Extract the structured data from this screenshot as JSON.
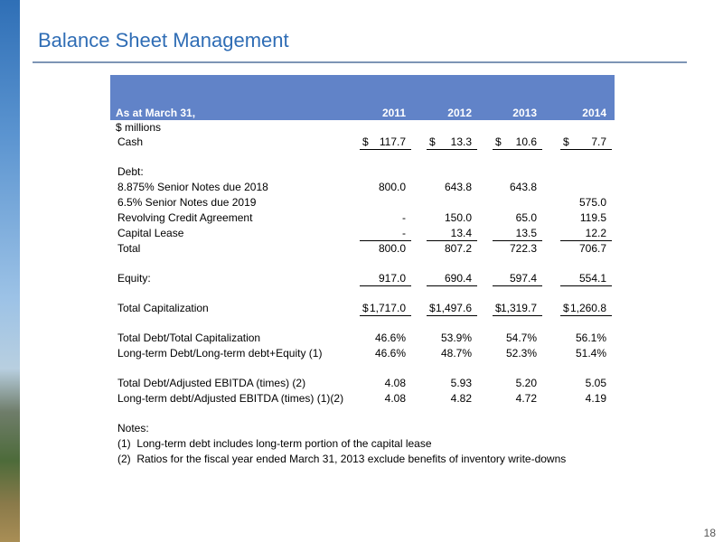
{
  "title": "Balance Sheet Management",
  "page_number": "18",
  "table": {
    "header": [
      "As at March 31,",
      "2011",
      "2012",
      "2013",
      "2014"
    ],
    "unit": "$ millions",
    "sections": [
      [
        {
          "label": "Cash",
          "cells": [
            [
              "$",
              "117.7"
            ],
            [
              "$",
              "13.3"
            ],
            [
              "$",
              "10.6"
            ],
            [
              "$",
              "7.7"
            ]
          ],
          "underline": true
        }
      ],
      [
        {
          "label": "Debt:",
          "cells": [
            null,
            null,
            null,
            null
          ]
        },
        {
          "label": "8.875% Senior Notes due 2018",
          "cells": [
            [
              null,
              "800.0"
            ],
            [
              null,
              "643.8"
            ],
            [
              null,
              "643.8"
            ],
            null
          ]
        },
        {
          "label": "6.5% Senior Notes due 2019",
          "cells": [
            null,
            null,
            null,
            [
              null,
              "575.0"
            ]
          ]
        },
        {
          "label": "Revolving Credit Agreement",
          "cells": [
            [
              null,
              "-"
            ],
            [
              null,
              "150.0"
            ],
            [
              null,
              "65.0"
            ],
            [
              null,
              "119.5"
            ]
          ]
        },
        {
          "label": "Capital Lease",
          "cells": [
            [
              null,
              "-"
            ],
            [
              null,
              "13.4"
            ],
            [
              null,
              "13.5"
            ],
            [
              null,
              "12.2"
            ]
          ],
          "underline": true
        },
        {
          "label": "Total",
          "cells": [
            [
              null,
              "800.0"
            ],
            [
              null,
              "807.2"
            ],
            [
              null,
              "722.3"
            ],
            [
              null,
              "706.7"
            ]
          ]
        }
      ],
      [
        {
          "label": "Equity:",
          "cells": [
            [
              null,
              "917.0"
            ],
            [
              null,
              "690.4"
            ],
            [
              null,
              "597.4"
            ],
            [
              null,
              "554.1"
            ]
          ],
          "underline": true
        }
      ],
      [
        {
          "label": "Total Capitalization",
          "cells": [
            [
              "$",
              "1,717.0"
            ],
            [
              "$",
              "1,497.6"
            ],
            [
              "$",
              "1,319.7"
            ],
            [
              "$",
              "1,260.8"
            ]
          ],
          "underline": true
        }
      ],
      [
        {
          "label": "Total Debt/Total Capitalization",
          "cells": [
            [
              null,
              "46.6%"
            ],
            [
              null,
              "53.9%"
            ],
            [
              null,
              "54.7%"
            ],
            [
              null,
              "56.1%"
            ]
          ]
        },
        {
          "label": "Long-term Debt/Long-term debt+Equity (1)",
          "cells": [
            [
              null,
              "46.6%"
            ],
            [
              null,
              "48.7%"
            ],
            [
              null,
              "52.3%"
            ],
            [
              null,
              "51.4%"
            ]
          ]
        }
      ],
      [
        {
          "label": "Total Debt/Adjusted EBITDA (times) (2)",
          "cells": [
            [
              null,
              "4.08"
            ],
            [
              null,
              "5.93"
            ],
            [
              null,
              "5.20"
            ],
            [
              null,
              "5.05"
            ]
          ]
        },
        {
          "label": "Long-term debt/Adjusted EBITDA (times) (1)(2)",
          "cells": [
            [
              null,
              "4.08"
            ],
            [
              null,
              "4.82"
            ],
            [
              null,
              "4.72"
            ],
            [
              null,
              "4.19"
            ]
          ]
        }
      ]
    ]
  },
  "notes": {
    "heading": "Notes:",
    "items": [
      "(1)  Long-term debt includes long-term portion of the capital lease",
      "(2)  Ratios for the fiscal year ended March 31, 2013 exclude benefits of inventory write-downs"
    ]
  }
}
